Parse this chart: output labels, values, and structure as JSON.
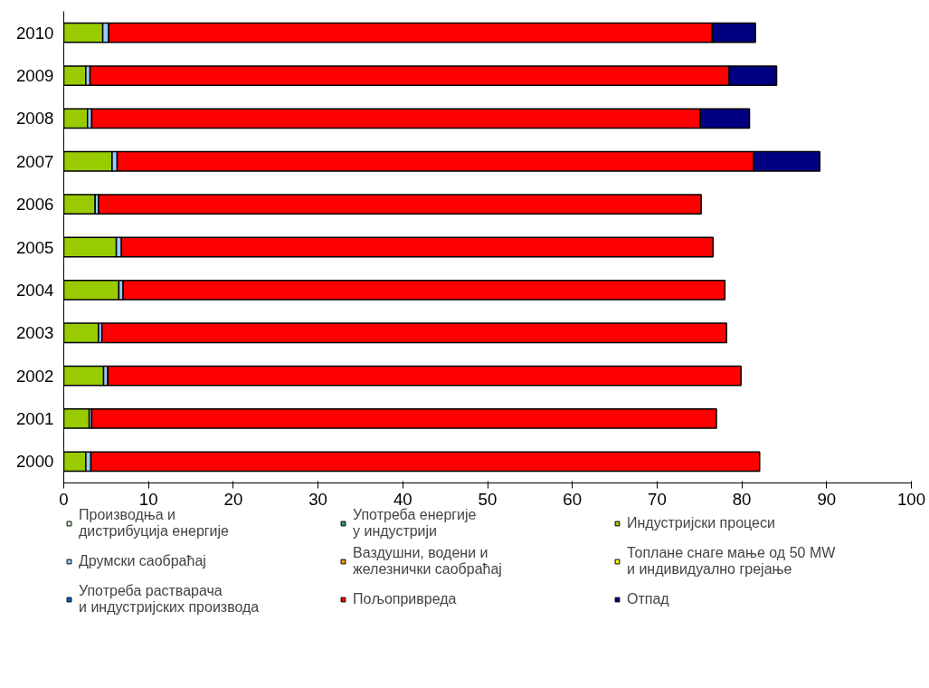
{
  "chart_data": {
    "type": "bar",
    "orientation": "horizontal",
    "stacked": true,
    "categories": [
      "2010",
      "2009",
      "2008",
      "2007",
      "2006",
      "2005",
      "2004",
      "2003",
      "2002",
      "2001",
      "2000"
    ],
    "series": [
      {
        "name": "Производња и\nдистрибуција енергије",
        "color": "#ccffcc",
        "values": [
          0,
          0,
          0,
          0,
          0,
          0,
          0,
          0,
          0,
          0,
          0
        ]
      },
      {
        "name": "Употреба енергије\nу индустрији",
        "color": "#339966",
        "values": [
          0,
          0,
          0,
          0,
          0,
          0,
          0,
          0,
          0,
          0,
          0
        ]
      },
      {
        "name": "Индустријски процеси",
        "color": "#99cc00",
        "values": [
          4.6,
          2.6,
          2.8,
          5.7,
          3.7,
          6.2,
          6.5,
          4.1,
          4.7,
          3.0,
          2.6
        ]
      },
      {
        "name": "Друмски саобраћај",
        "color": "#99ccff",
        "values": [
          0.7,
          0.5,
          0.5,
          0.6,
          0.4,
          0.6,
          0.5,
          0.4,
          0.5,
          0.3,
          0.6
        ]
      },
      {
        "name": "Ваздушни, водени и\nжелезнички саобраћај",
        "color": "#ff9900",
        "values": [
          0,
          0,
          0,
          0,
          0,
          0,
          0,
          0,
          0,
          0,
          0
        ]
      },
      {
        "name": "Топлане снаге мање од 50 MW\nи индивидуално грејање",
        "color": "#ffff00",
        "values": [
          0,
          0,
          0,
          0,
          0,
          0,
          0,
          0,
          0,
          0,
          0
        ]
      },
      {
        "name": "Употреба растварача\nи индустријских производа",
        "color": "#0066cc",
        "values": [
          0,
          0,
          0,
          0,
          0,
          0,
          0,
          0,
          0,
          0,
          0
        ]
      },
      {
        "name": "Пољопривреда",
        "color": "#ff0000",
        "values": [
          71.2,
          75.4,
          71.8,
          75.1,
          71.1,
          69.8,
          71.0,
          73.7,
          74.7,
          73.7,
          78.9
        ]
      },
      {
        "name": "Отпад",
        "color": "#000080",
        "values": [
          5.1,
          5.6,
          5.8,
          7.8,
          0,
          0,
          0,
          0,
          0,
          0,
          0
        ]
      }
    ],
    "xlim": [
      0,
      100
    ],
    "xticks": [
      0,
      10,
      20,
      30,
      40,
      50,
      60,
      70,
      80,
      90,
      100
    ],
    "grid": false,
    "legend": "bottom"
  }
}
